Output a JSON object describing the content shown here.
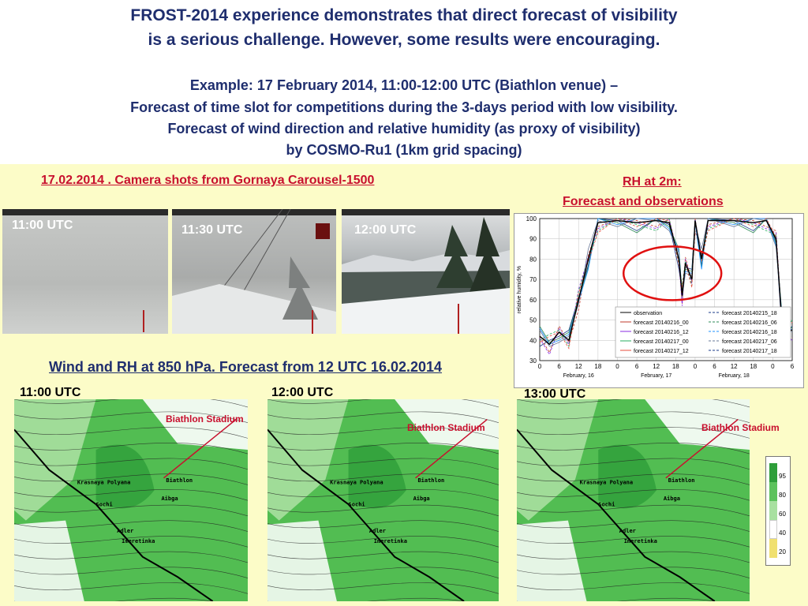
{
  "header": {
    "line1": "FROST-2014 experience demonstrates that direct forecast of visibility",
    "line2": "is a serious challenge. However, some results were encouraging.",
    "line3": "Example:  17 February 2014, 11:00-12:00 UTC (Biathlon venue) –",
    "line4": "Forecast of time slot for competitions during the 3-days period with low visibility.",
    "line5": "Forecast of wind direction and relative humidity (as proxy of visibility)",
    "line6": "by COSMO-Ru1 (1km grid spacing)"
  },
  "camera": {
    "title": "17.02.2014 . Camera shots from Gornaya Carousel-1500",
    "shots": [
      {
        "time": "11:00 UTC"
      },
      {
        "time": "11:30 UTC"
      },
      {
        "time": "12:00 UTC"
      }
    ]
  },
  "rh": {
    "title1": "RH at 2m:",
    "title2": "Forecast and observations",
    "ylabel": "relative humidity, %",
    "yticks": [
      "100",
      "90",
      "80",
      "70",
      "60",
      "50",
      "40",
      "30"
    ],
    "xticks": [
      "0",
      "6",
      "12",
      "18",
      "0",
      "6",
      "12",
      "18",
      "0",
      "6",
      "12",
      "18",
      "0",
      "6"
    ],
    "days": [
      "February, 16",
      "February, 17",
      "February, 18"
    ],
    "legend": [
      "observation",
      "forecast 20140215_18",
      "forecast 20140216_00",
      "forecast 20140216_06",
      "forecast 20140216_12",
      "forecast 20140216_18",
      "forecast 20140217_00",
      "forecast 20140217_06",
      "forecast 20140217_12",
      "forecast 20140217_18"
    ]
  },
  "wind": {
    "title": "Wind and RH at 850 hPa.  Forecast from 12 UTC 16.02.2014",
    "maps": [
      {
        "time": "11:00 UTC",
        "stadium": "Biathlon  Stadium"
      },
      {
        "time": "12:00 UTC",
        "stadium": "Biathlon  Stadium"
      },
      {
        "time": "13:00 UTC",
        "stadium": "Biathlon  Stadium"
      }
    ],
    "places": {
      "krasnaya": "Krasnaya  Polyana",
      "biathlon": "Biathlon",
      "aibga": "Aibga",
      "sochi": "Sochi",
      "adler": "Adler",
      "imeretinka": "Imeretinka"
    },
    "scale": [
      "95",
      "80",
      "60",
      "40",
      "20"
    ]
  }
}
